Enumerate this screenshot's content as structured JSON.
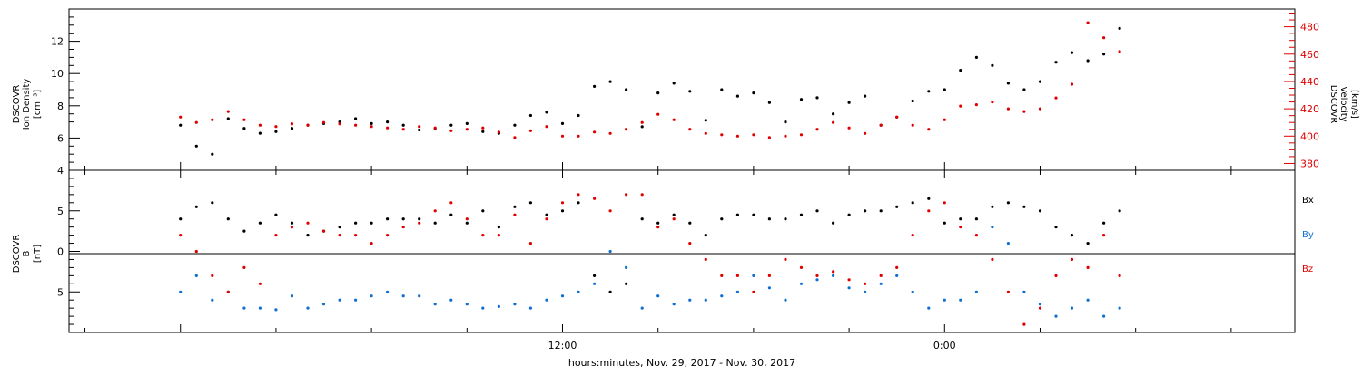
{
  "chart_data": [
    {
      "type": "scatter",
      "panel": "top",
      "ylabel_left": [
        "DSCOVR",
        "Ion Density",
        "[cm⁻³]"
      ],
      "ylabel_right": [
        "DSCOVR",
        "Velocity",
        "[km/s]"
      ],
      "ylim_left": [
        4,
        14
      ],
      "ylim_right": [
        375,
        493
      ],
      "yticks_left": [
        "4",
        "6",
        "8",
        "10",
        "12"
      ],
      "yticks_right": [
        "380",
        "400",
        "420",
        "440",
        "460",
        "480"
      ],
      "colors": {
        "density": "#000000",
        "velocity": "#e00000"
      },
      "series": [
        {
          "name": "Ion Density",
          "axis": "left",
          "color": "#000000",
          "x_hours": [
            0,
            0.5,
            1,
            1.5,
            2,
            2.5,
            3,
            3.5,
            4,
            4.5,
            5,
            5.5,
            6,
            6.5,
            7,
            7.5,
            8,
            8.5,
            9,
            9.5,
            10,
            10.5,
            11,
            11.5,
            12,
            12.5,
            13,
            13.5,
            14,
            14.5,
            15,
            15.5,
            16,
            16.5,
            17,
            17.5,
            18,
            18.5,
            19,
            19.5,
            20,
            20.5,
            21,
            21.5,
            22,
            22.5,
            23,
            23.5,
            24,
            24.5,
            25,
            25.5,
            26,
            26.5,
            27,
            27.5,
            28,
            28.5,
            29,
            29.5
          ],
          "y": [
            6.8,
            5.5,
            5.0,
            7.2,
            6.6,
            6.3,
            6.4,
            6.6,
            6.8,
            6.9,
            7.0,
            7.2,
            6.9,
            7.0,
            6.8,
            6.5,
            6.6,
            6.8,
            6.9,
            6.4,
            6.3,
            6.8,
            7.4,
            7.6,
            6.9,
            7.4,
            9.2,
            9.5,
            9.0,
            6.7,
            8.8,
            9.4,
            8.9,
            7.1,
            9.0,
            8.6,
            8.8,
            8.2,
            7.0,
            8.4,
            8.5,
            7.5,
            8.2,
            8.6,
            6.8,
            7.3,
            8.3,
            8.9,
            9.0,
            10.2,
            11.0,
            10.5,
            9.4,
            9.0,
            9.5,
            10.7,
            11.3,
            10.8,
            11.2,
            12.8
          ]
        },
        {
          "name": "Velocity",
          "axis": "right",
          "color": "#e00000",
          "x_hours": [
            0,
            0.5,
            1,
            1.5,
            2,
            2.5,
            3,
            3.5,
            4,
            4.5,
            5,
            5.5,
            6,
            6.5,
            7,
            7.5,
            8,
            8.5,
            9,
            9.5,
            10,
            10.5,
            11,
            11.5,
            12,
            12.5,
            13,
            13.5,
            14,
            14.5,
            15,
            15.5,
            16,
            16.5,
            17,
            17.5,
            18,
            18.5,
            19,
            19.5,
            20,
            20.5,
            21,
            21.5,
            22,
            22.5,
            23,
            23.5,
            24,
            24.5,
            25,
            25.5,
            26,
            26.5,
            27,
            27.5,
            28,
            28.5,
            29,
            29.5
          ],
          "y": [
            414,
            410,
            412,
            418,
            412,
            408,
            407,
            409,
            408,
            410,
            409,
            408,
            407,
            406,
            405,
            407,
            406,
            404,
            405,
            406,
            403,
            399,
            404,
            407,
            400,
            400,
            403,
            402,
            405,
            410,
            416,
            412,
            405,
            402,
            401,
            400,
            401,
            399,
            400,
            401,
            405,
            410,
            406,
            402,
            408,
            414,
            408,
            405,
            412,
            422,
            423,
            425,
            420,
            418,
            420,
            428,
            438,
            483,
            472,
            462
          ]
        }
      ]
    },
    {
      "type": "scatter",
      "panel": "bottom",
      "ylabel": [
        "DSCOVR",
        "B",
        "[nT]"
      ],
      "ylim": [
        -10,
        10
      ],
      "yticks": [
        "-5",
        "0",
        "5"
      ],
      "zero_line": true,
      "legend": [
        "Bx",
        "By",
        "Bz"
      ],
      "legend_placement": "right",
      "xlabel": "hours:minutes, Nov. 29, 2017 - Nov. 30, 2017",
      "xticks": [
        {
          "hours": 12,
          "label": "12:00"
        },
        {
          "hours": 24,
          "label": "0:00"
        }
      ],
      "xlim_hours": [
        -3.5,
        35
      ],
      "series": [
        {
          "name": "Bx",
          "color": "#000000",
          "x_hours": [
            0,
            0.5,
            1,
            1.5,
            2,
            2.5,
            3,
            3.5,
            4,
            4.5,
            5,
            5.5,
            6,
            6.5,
            7,
            7.5,
            8,
            8.5,
            9,
            9.5,
            10,
            10.5,
            11,
            11.5,
            12,
            12.5,
            13,
            13.5,
            14,
            14.5,
            15,
            15.5,
            16,
            16.5,
            17,
            17.5,
            18,
            18.5,
            19,
            19.5,
            20,
            20.5,
            21,
            21.5,
            22,
            22.5,
            23,
            23.5,
            24,
            24.5,
            25,
            25.5,
            26,
            26.5,
            27,
            27.5,
            28,
            28.5,
            29,
            29.5
          ],
          "y": [
            4,
            5.5,
            6,
            4,
            2.5,
            3.5,
            4.5,
            3.5,
            2,
            2.5,
            3,
            3.5,
            3.5,
            4,
            4,
            4,
            3.5,
            4.5,
            3.5,
            5,
            3,
            5.5,
            6,
            4.5,
            5,
            6,
            -3,
            -5,
            -4,
            4,
            3.5,
            4.5,
            3.5,
            2,
            4,
            4.5,
            4.5,
            4,
            4,
            4.5,
            5,
            3.5,
            4.5,
            5,
            5,
            5.5,
            6,
            6.5,
            3.5,
            4,
            4,
            5.5,
            6,
            5.5,
            5,
            3,
            2,
            1,
            3.5,
            5
          ]
        },
        {
          "name": "By",
          "color": "#1070d0",
          "x_hours": [
            0,
            0.5,
            1,
            1.5,
            2,
            2.5,
            3,
            3.5,
            4,
            4.5,
            5,
            5.5,
            6,
            6.5,
            7,
            7.5,
            8,
            8.5,
            9,
            9.5,
            10,
            10.5,
            11,
            11.5,
            12,
            12.5,
            13,
            13.5,
            14,
            14.5,
            15,
            15.5,
            16,
            16.5,
            17,
            17.5,
            18,
            18.5,
            19,
            19.5,
            20,
            20.5,
            21,
            21.5,
            22,
            22.5,
            23,
            23.5,
            24,
            24.5,
            25,
            25.5,
            26,
            26.5,
            27,
            27.5,
            28,
            28.5,
            29,
            29.5
          ],
          "y": [
            -5,
            -3,
            -6,
            -5,
            -7,
            -7,
            -7.2,
            -5.5,
            -7,
            -6.5,
            -6,
            -6,
            -5.5,
            -5,
            -5.5,
            -5.5,
            -6.5,
            -6,
            -6.5,
            -7,
            -6.8,
            -6.5,
            -7,
            -6,
            -5.5,
            -5,
            -4,
            0,
            -2,
            -7,
            -5.5,
            -6.5,
            -6,
            -6,
            -5.5,
            -5,
            -3,
            -4.5,
            -6,
            -4,
            -3.5,
            -3,
            -4.5,
            -5,
            -4,
            -3,
            -5,
            -7,
            -6,
            -6,
            -5,
            3,
            1,
            -5,
            -6.5,
            -8,
            -7,
            -6,
            -8,
            -7
          ]
        },
        {
          "name": "Bz",
          "color": "#e00000",
          "x_hours": [
            0,
            0.5,
            1,
            1.5,
            2,
            2.5,
            3,
            3.5,
            4,
            4.5,
            5,
            5.5,
            6,
            6.5,
            7,
            7.5,
            8,
            8.5,
            9,
            9.5,
            10,
            10.5,
            11,
            11.5,
            12,
            12.5,
            13,
            13.5,
            14,
            14.5,
            15,
            15.5,
            16,
            16.5,
            17,
            17.5,
            18,
            18.5,
            19,
            19.5,
            20,
            20.5,
            21,
            21.5,
            22,
            22.5,
            23,
            23.5,
            24,
            24.5,
            25,
            25.5,
            26,
            26.5,
            27,
            27.5,
            28,
            28.5,
            29,
            29.5
          ],
          "y": [
            2,
            0,
            -3,
            -5,
            -2,
            -4,
            2,
            3,
            3.5,
            2.5,
            2,
            2,
            1,
            2,
            3,
            3.5,
            5,
            6,
            4,
            2,
            2,
            4.5,
            1,
            4,
            6,
            7,
            6.5,
            5,
            7,
            7,
            3,
            4,
            1,
            -1,
            -3,
            -3,
            -5,
            -3,
            -1,
            -2,
            -3,
            -2.5,
            -3.5,
            -4,
            -3,
            -2,
            2,
            5,
            6,
            3,
            2,
            -1,
            -5,
            -9,
            -7,
            -3,
            -1,
            -2,
            2,
            -3
          ]
        }
      ]
    }
  ]
}
